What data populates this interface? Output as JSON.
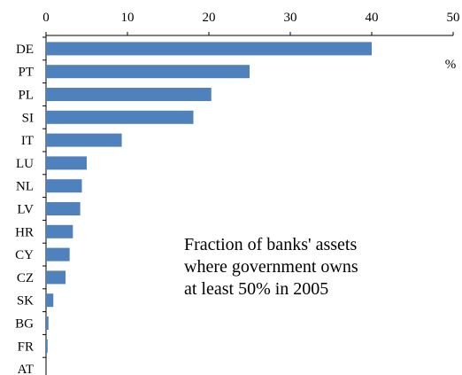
{
  "chart_data": {
    "type": "bar",
    "orientation": "horizontal",
    "categories": [
      "DE",
      "PT",
      "PL",
      "SI",
      "IT",
      "LU",
      "NL",
      "LV",
      "HR",
      "CY",
      "CZ",
      "SK",
      "BG",
      "FR",
      "AT"
    ],
    "values": [
      40.0,
      25.0,
      20.3,
      18.1,
      9.3,
      5.0,
      4.4,
      4.2,
      3.3,
      2.9,
      2.4,
      0.9,
      0.3,
      0.2,
      0.0
    ],
    "xlim": [
      0,
      50
    ],
    "xticks": [
      "0",
      "10",
      "20",
      "30",
      "40",
      "50"
    ],
    "unit": "%",
    "annotation": [
      "Fraction of banks' assets",
      "where government owns",
      "at least 50% in 2005"
    ],
    "grid": false,
    "x_axis_position": "top",
    "colors": {
      "bar": "#4f81bd",
      "axis": "#000000"
    }
  }
}
